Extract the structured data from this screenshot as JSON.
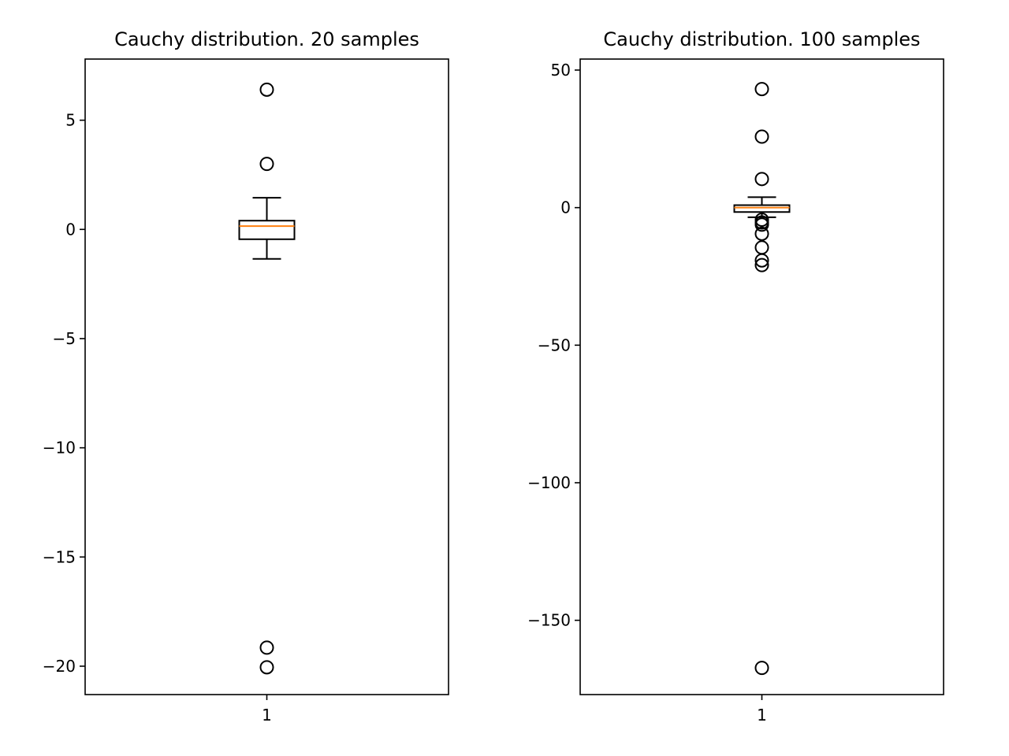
{
  "chart_data": [
    {
      "type": "boxplot",
      "title": "Cauchy distribution. 20 samples",
      "xlabel": "",
      "ylabel": "",
      "categories": [
        "1"
      ],
      "ylim": [
        -21.3,
        7.8
      ],
      "yticks": [
        5,
        0,
        -5,
        -10,
        -15,
        -20
      ],
      "ytick_labels": [
        "5",
        "0",
        "−5",
        "−10",
        "−15",
        "−20"
      ],
      "boxes": [
        {
          "label": "1",
          "whisker_low": -1.35,
          "q1": -0.45,
          "median": 0.15,
          "q3": 0.4,
          "whisker_high": 1.45,
          "fliers": [
            6.4,
            3.0,
            -19.15,
            -20.05
          ]
        }
      ]
    },
    {
      "type": "boxplot",
      "title": "Cauchy distribution. 100 samples",
      "xlabel": "",
      "ylabel": "",
      "categories": [
        "1"
      ],
      "ylim": [
        -177,
        54
      ],
      "yticks": [
        50,
        0,
        -50,
        -100,
        -150
      ],
      "ytick_labels": [
        "50",
        "0",
        "−50",
        "−100",
        "−150"
      ],
      "boxes": [
        {
          "label": "1",
          "whisker_low": -3.5,
          "q1": -1.6,
          "median": 0,
          "q3": 0.9,
          "whisker_high": 3.8,
          "fliers": [
            43.1,
            25.8,
            10.4,
            -4.4,
            -5.4,
            -6.2,
            -9.5,
            -14.5,
            -19.2,
            -20.9,
            -167.3
          ]
        }
      ]
    }
  ],
  "colors": {
    "box": "#000000",
    "median": "#ff7f0e",
    "axes": "#000000",
    "background": "#ffffff"
  }
}
